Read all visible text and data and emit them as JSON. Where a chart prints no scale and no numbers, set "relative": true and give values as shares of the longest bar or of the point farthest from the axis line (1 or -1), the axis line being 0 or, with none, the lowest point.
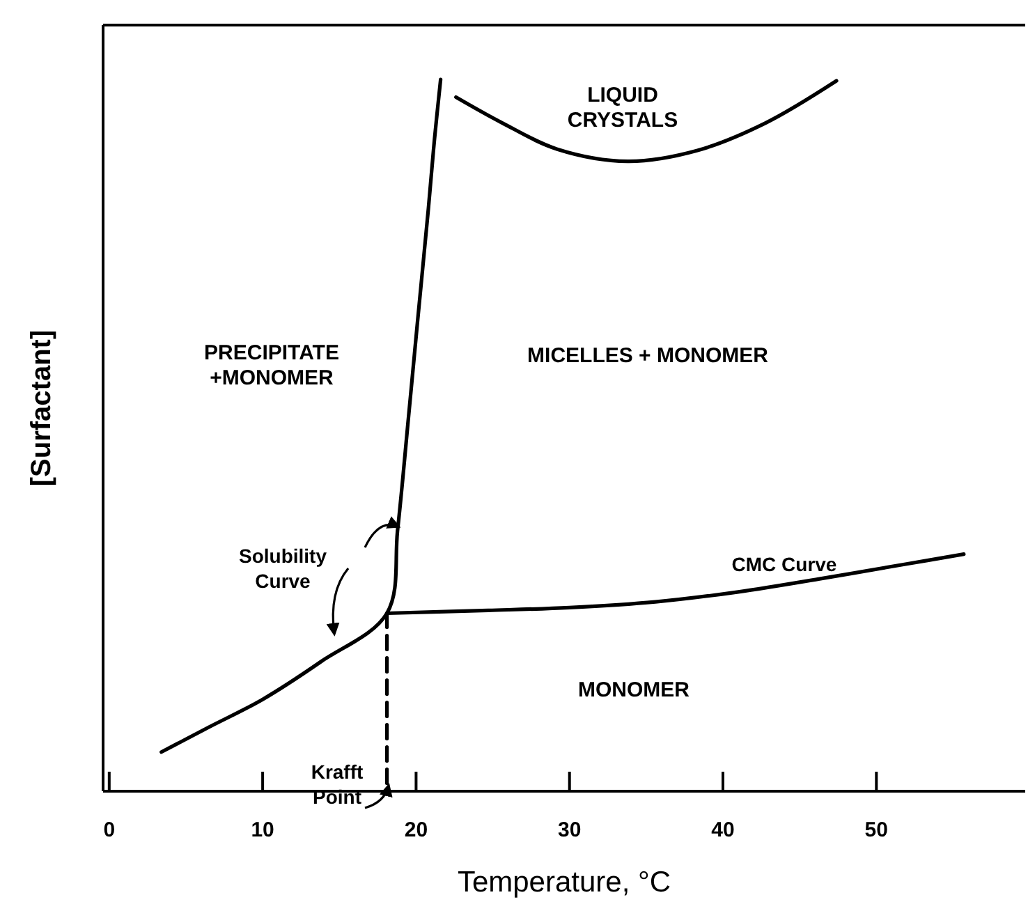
{
  "chart_data": {
    "type": "line",
    "relative": true,
    "xlabel": "Temperature, °C",
    "ylabel": "[Surfactant]",
    "xlim": [
      -0.4,
      59.7
    ],
    "xticks": [
      0,
      10,
      20,
      30,
      40,
      50
    ],
    "grid": false,
    "marker": "none",
    "series": [
      {
        "color": "#000000",
        "x": [
          3.4,
          6.5,
          10,
          13.8,
          18.1,
          18.8,
          19.5,
          20.1,
          20.8,
          21.2,
          21.6
        ],
        "values": [
          0.055,
          0.09,
          0.129,
          0.182,
          0.25,
          0.368,
          0.524,
          0.661,
          0.818,
          0.916,
          1.0
        ]
      },
      {
        "color": "#000000",
        "x": [
          18.1,
          24.7,
          30,
          35.6,
          41,
          46.5,
          51.9,
          55.7
        ],
        "values": [
          0.25,
          0.254,
          0.258,
          0.266,
          0.28,
          0.299,
          0.319,
          0.333
        ]
      },
      {
        "color": "#000000",
        "x": [
          22.6,
          25.6,
          29.2,
          33.8,
          38.3,
          42.8,
          47.4
        ],
        "values": [
          0.975,
          0.939,
          0.902,
          0.885,
          0.9,
          0.939,
          0.998
        ]
      },
      {
        "color": "#000000",
        "line_style": "dashed",
        "x": [
          18.1,
          18.1
        ],
        "values": [
          0.25,
          0
        ]
      }
    ],
    "annotations": [
      "LIQUID\nCRYSTALS",
      "PRECIPITATE\n+MONOMER",
      "MICELLES + MONOMER",
      "MONOMER",
      "CMC Curve",
      "Solubility\nCurve",
      "Krafft\nPoint"
    ]
  }
}
